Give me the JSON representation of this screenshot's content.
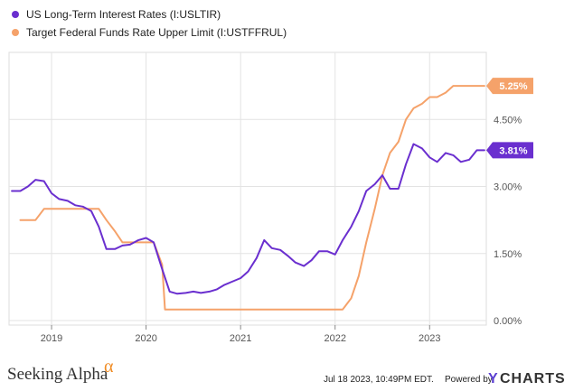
{
  "chart_data": {
    "type": "line",
    "title": "",
    "xlabel": "",
    "ylabel": "",
    "x_ticks": [
      "2019",
      "2020",
      "2021",
      "2022",
      "2023"
    ],
    "y_ticks": [
      "0.00%",
      "1.50%",
      "3.00%",
      "4.50%"
    ],
    "ylim": [
      -0.1,
      6.0
    ],
    "xlim": [
      2018.55,
      2023.6
    ],
    "grid": true,
    "legend_position": "top-left",
    "series": [
      {
        "name": "US Long-Term Interest Rates (I:USLTIR)",
        "color": "#6a2fcf",
        "end_label": "3.81%",
        "x": [
          2018.58,
          2018.67,
          2018.75,
          2018.83,
          2018.92,
          2019.0,
          2019.08,
          2019.17,
          2019.25,
          2019.33,
          2019.42,
          2019.5,
          2019.58,
          2019.67,
          2019.75,
          2019.83,
          2019.92,
          2020.0,
          2020.08,
          2020.17,
          2020.25,
          2020.33,
          2020.42,
          2020.5,
          2020.58,
          2020.67,
          2020.75,
          2020.83,
          2020.92,
          2021.0,
          2021.08,
          2021.17,
          2021.25,
          2021.33,
          2021.42,
          2021.5,
          2021.58,
          2021.67,
          2021.75,
          2021.83,
          2021.92,
          2022.0,
          2022.08,
          2022.17,
          2022.25,
          2022.33,
          2022.42,
          2022.5,
          2022.58,
          2022.67,
          2022.75,
          2022.83,
          2022.92,
          2023.0,
          2023.08,
          2023.17,
          2023.25,
          2023.33,
          2023.42,
          2023.5,
          2023.58
        ],
        "values": [
          2.9,
          2.9,
          3.0,
          3.15,
          3.12,
          2.85,
          2.72,
          2.68,
          2.58,
          2.55,
          2.45,
          2.1,
          1.6,
          1.6,
          1.68,
          1.7,
          1.8,
          1.85,
          1.75,
          1.15,
          0.65,
          0.6,
          0.62,
          0.65,
          0.62,
          0.65,
          0.7,
          0.8,
          0.88,
          0.95,
          1.1,
          1.4,
          1.8,
          1.62,
          1.58,
          1.45,
          1.3,
          1.22,
          1.35,
          1.55,
          1.55,
          1.48,
          1.8,
          2.1,
          2.45,
          2.9,
          3.05,
          3.25,
          2.95,
          2.95,
          3.5,
          3.95,
          3.85,
          3.65,
          3.55,
          3.75,
          3.7,
          3.55,
          3.6,
          3.81,
          3.81
        ]
      },
      {
        "name": "Target Federal Funds Rate Upper Limit (I:USTFFRUL)",
        "color": "#f5a26a",
        "end_label": "5.25%",
        "x": [
          2018.67,
          2018.75,
          2018.83,
          2018.92,
          2019.0,
          2019.08,
          2019.17,
          2019.25,
          2019.33,
          2019.42,
          2019.5,
          2019.58,
          2019.67,
          2019.75,
          2019.83,
          2019.92,
          2020.0,
          2020.08,
          2020.17,
          2020.2,
          2020.25,
          2020.33,
          2020.42,
          2020.5,
          2020.58,
          2020.67,
          2020.75,
          2020.83,
          2020.92,
          2021.0,
          2021.08,
          2021.17,
          2021.25,
          2021.33,
          2021.42,
          2021.5,
          2021.58,
          2021.67,
          2021.75,
          2021.83,
          2021.92,
          2022.0,
          2022.08,
          2022.17,
          2022.25,
          2022.33,
          2022.42,
          2022.5,
          2022.58,
          2022.67,
          2022.75,
          2022.83,
          2022.92,
          2023.0,
          2023.08,
          2023.17,
          2023.25,
          2023.33,
          2023.42,
          2023.5,
          2023.58
        ],
        "values": [
          2.25,
          2.25,
          2.25,
          2.5,
          2.5,
          2.5,
          2.5,
          2.5,
          2.5,
          2.5,
          2.5,
          2.25,
          2.0,
          1.75,
          1.75,
          1.75,
          1.75,
          1.75,
          1.25,
          0.25,
          0.25,
          0.25,
          0.25,
          0.25,
          0.25,
          0.25,
          0.25,
          0.25,
          0.25,
          0.25,
          0.25,
          0.25,
          0.25,
          0.25,
          0.25,
          0.25,
          0.25,
          0.25,
          0.25,
          0.25,
          0.25,
          0.25,
          0.25,
          0.5,
          1.0,
          1.75,
          2.5,
          3.25,
          3.75,
          4.0,
          4.5,
          4.75,
          4.85,
          5.0,
          5.0,
          5.1,
          5.25,
          5.25,
          5.25,
          5.25,
          5.25
        ]
      }
    ]
  },
  "footer": {
    "brand_text": "Seeking Alpha",
    "brand_mark": "α",
    "timestamp": "Jul 18 2023, 10:49PM EDT.",
    "powered_by": "Powered by",
    "ycharts_y": "Y",
    "ycharts_rest": "CHARTS"
  }
}
